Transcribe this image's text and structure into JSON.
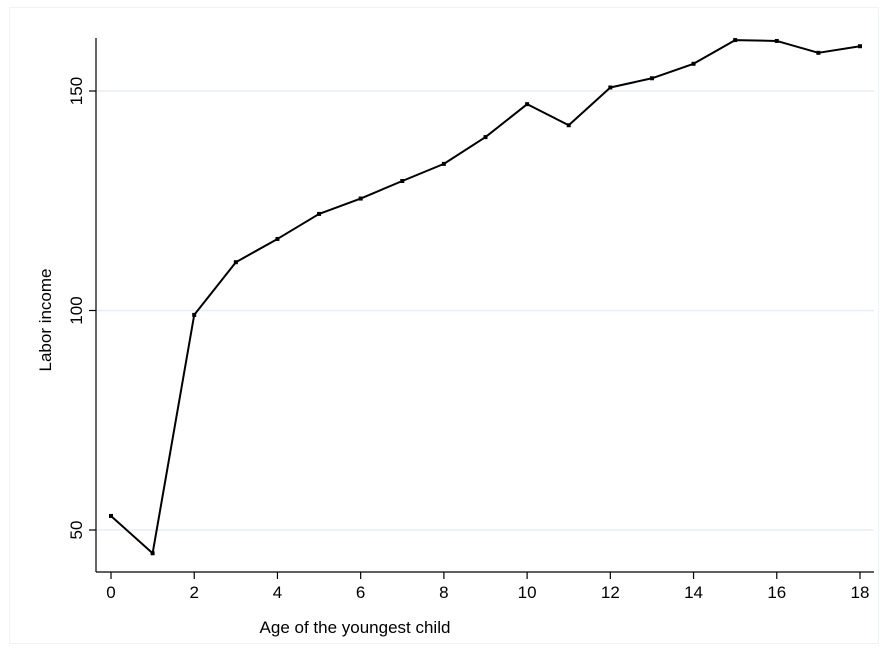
{
  "chart_data": {
    "type": "line",
    "title": "",
    "xlabel": "Age of the youngest child",
    "ylabel": "Labor income",
    "xlim": [
      0,
      18
    ],
    "ylim": [
      42,
      163
    ],
    "x_ticks": [
      0,
      2,
      4,
      6,
      8,
      10,
      12,
      14,
      16,
      18
    ],
    "y_ticks": [
      50,
      100,
      150
    ],
    "grid": "horizontal at y ticks",
    "legend": "none",
    "series": [
      {
        "x": [
          0,
          1,
          2,
          3,
          4,
          5,
          6,
          7,
          8,
          9,
          10,
          11,
          12,
          13,
          14,
          15,
          16,
          17,
          18
        ],
        "values": [
          53.2,
          44.7,
          99,
          111,
          116.3,
          122,
          125.5,
          129.5,
          133.4,
          139.5,
          147,
          142.2,
          150.8,
          152.9,
          156.2,
          161.6,
          161.4,
          158.7,
          160.2
        ]
      }
    ],
    "colors": {
      "line": "#000000",
      "grid": "#e5eef2",
      "axis": "#000000"
    }
  }
}
